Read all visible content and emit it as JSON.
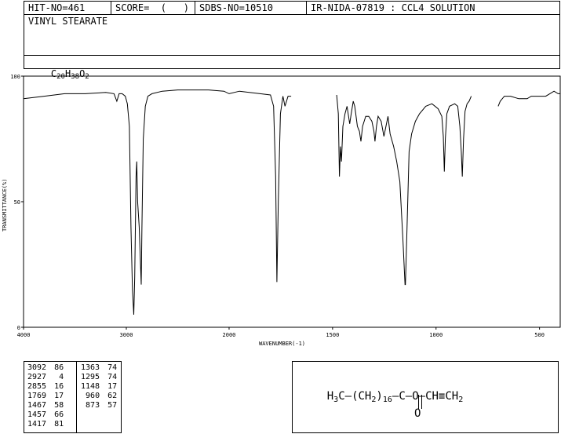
{
  "header": {
    "hit_no": "HIT-NO=461",
    "score": "SCORE=  (   )",
    "sdbs_no": "SDBS-NO=10510",
    "ir_info": "IR-NIDA-07819 : CCL4 SOLUTION"
  },
  "compound_name": "VINYL STEARATE",
  "formula": {
    "parts": [
      [
        "C",
        "20"
      ],
      [
        "H",
        "38"
      ],
      [
        "O",
        "2"
      ]
    ]
  },
  "chart_data": {
    "type": "line",
    "xlabel": "WAVENUMBER(-1)",
    "ylabel": "TRANSMITTANCE(%)",
    "xlim": [
      4000,
      400
    ],
    "ylim": [
      0,
      100
    ],
    "x_ticks": [
      4000,
      3000,
      2000,
      1500,
      1000,
      500
    ],
    "y_ticks": [
      0,
      50,
      100
    ],
    "x_tick_labels": [
      "4000",
      "3000",
      "2000",
      "1500",
      "1000",
      "500"
    ],
    "y_tick_labels": [
      "0",
      "50",
      "100"
    ],
    "segments": [
      [
        [
          4000,
          91
        ],
        [
          3800,
          92
        ],
        [
          3600,
          93
        ],
        [
          3400,
          93
        ],
        [
          3200,
          93.5
        ],
        [
          3120,
          93
        ],
        [
          3092,
          90
        ],
        [
          3070,
          93
        ],
        [
          3040,
          93
        ],
        [
          3010,
          92
        ],
        [
          2990,
          89
        ],
        [
          2970,
          80
        ],
        [
          2955,
          40
        ],
        [
          2940,
          15
        ],
        [
          2927,
          5
        ],
        [
          2918,
          20
        ],
        [
          2905,
          60
        ],
        [
          2898,
          66
        ],
        [
          2890,
          50
        ],
        [
          2875,
          40
        ],
        [
          2862,
          25
        ],
        [
          2855,
          17
        ],
        [
          2848,
          40
        ],
        [
          2835,
          75
        ],
        [
          2815,
          88
        ],
        [
          2790,
          92
        ],
        [
          2750,
          93
        ],
        [
          2650,
          94
        ],
        [
          2500,
          94.5
        ],
        [
          2300,
          94.5
        ],
        [
          2200,
          94.5
        ],
        [
          2050,
          94
        ],
        [
          2000,
          93
        ],
        [
          1950,
          94
        ],
        [
          1850,
          93
        ],
        [
          1800,
          92.5
        ],
        [
          1785,
          88
        ],
        [
          1775,
          60
        ],
        [
          1769,
          18
        ],
        [
          1762,
          50
        ],
        [
          1752,
          85
        ],
        [
          1740,
          92
        ],
        [
          1730,
          88
        ],
        [
          1715,
          92
        ],
        [
          1700,
          92
        ]
      ],
      [
        [
          1480,
          92.5
        ],
        [
          1472,
          85
        ],
        [
          1467,
          60
        ],
        [
          1462,
          72
        ],
        [
          1457,
          66
        ],
        [
          1450,
          80
        ],
        [
          1440,
          85
        ],
        [
          1430,
          88
        ],
        [
          1417,
          81
        ],
        [
          1410,
          85
        ],
        [
          1400,
          90
        ],
        [
          1393,
          88
        ],
        [
          1388,
          85
        ],
        [
          1380,
          80
        ],
        [
          1370,
          78
        ],
        [
          1363,
          74
        ],
        [
          1355,
          80
        ],
        [
          1340,
          84
        ],
        [
          1325,
          84
        ],
        [
          1310,
          82
        ],
        [
          1300,
          78
        ],
        [
          1295,
          74
        ],
        [
          1288,
          80
        ],
        [
          1280,
          84
        ],
        [
          1265,
          82
        ],
        [
          1252,
          76
        ],
        [
          1242,
          80
        ],
        [
          1232,
          84
        ],
        [
          1222,
          77
        ],
        [
          1205,
          72
        ],
        [
          1190,
          66
        ],
        [
          1175,
          58
        ],
        [
          1160,
          35
        ],
        [
          1150,
          17
        ],
        [
          1148,
          17
        ],
        [
          1140,
          40
        ],
        [
          1130,
          70
        ],
        [
          1118,
          77
        ],
        [
          1100,
          82
        ],
        [
          1080,
          85
        ],
        [
          1050,
          88
        ],
        [
          1020,
          89
        ],
        [
          990,
          87
        ],
        [
          972,
          84
        ],
        [
          965,
          76
        ],
        [
          960,
          62
        ],
        [
          955,
          75
        ],
        [
          948,
          85
        ],
        [
          935,
          88
        ],
        [
          910,
          89
        ],
        [
          895,
          88
        ],
        [
          885,
          80
        ],
        [
          878,
          70
        ],
        [
          873,
          60
        ],
        [
          867,
          75
        ],
        [
          860,
          86
        ],
        [
          850,
          89
        ],
        [
          840,
          90
        ],
        [
          830,
          92
        ]
      ],
      [
        [
          700,
          88
        ],
        [
          690,
          90
        ],
        [
          670,
          92
        ],
        [
          640,
          92
        ],
        [
          600,
          91
        ],
        [
          560,
          91
        ],
        [
          540,
          92
        ],
        [
          500,
          92
        ],
        [
          470,
          92
        ],
        [
          450,
          93
        ],
        [
          430,
          94
        ],
        [
          410,
          93
        ],
        [
          400,
          93
        ]
      ]
    ]
  },
  "peak_table": {
    "left": [
      [
        "3092",
        "86"
      ],
      [
        "2927",
        "4"
      ],
      [
        "2855",
        "16"
      ],
      [
        "1769",
        "17"
      ],
      [
        "1467",
        "58"
      ],
      [
        "1457",
        "66"
      ],
      [
        "1417",
        "81"
      ]
    ],
    "right": [
      [
        "1363",
        "74"
      ],
      [
        "1295",
        "74"
      ],
      [
        "1148",
        "17"
      ],
      [
        "960",
        "62"
      ],
      [
        "873",
        "57"
      ]
    ]
  },
  "structure": {
    "left": "H",
    "left_sub": "3",
    "c1": "C",
    "chain_open": "(CH",
    "chain_sub": "2",
    "chain_close": ")",
    "chain_n": "16",
    "c2": "C",
    "o1": "O",
    "c3": "CH",
    "c4": "CH",
    "c4_sub": "2",
    "carbonyl_o": "O"
  }
}
